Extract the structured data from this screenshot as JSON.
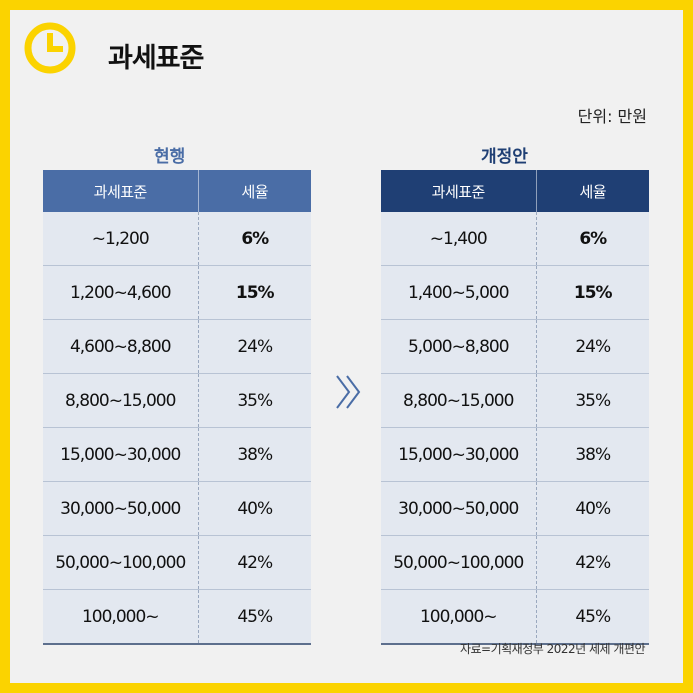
{
  "title": "과세표준",
  "unit_note": "단위: 만원",
  "current": {
    "caption": "현행",
    "header_color": "#4a6da6",
    "caption_color": "#4a6da6",
    "columns": [
      "과세표준",
      "세율"
    ],
    "rows": [
      {
        "bracket": "~1,200",
        "rate": "6%"
      },
      {
        "bracket": "1,200~4,600",
        "rate": "15%"
      },
      {
        "bracket": "4,600~8,800",
        "rate": "24%"
      },
      {
        "bracket": "8,800~15,000",
        "rate": "35%"
      },
      {
        "bracket": "15,000~30,000",
        "rate": "38%"
      },
      {
        "bracket": "30,000~50,000",
        "rate": "40%"
      },
      {
        "bracket": "50,000~100,000",
        "rate": "42%"
      },
      {
        "bracket": "100,000~",
        "rate": "45%"
      }
    ]
  },
  "revised": {
    "caption": "개정안",
    "header_color": "#1f3f74",
    "caption_color": "#1f3f74",
    "columns": [
      "과세표준",
      "세율"
    ],
    "rows": [
      {
        "bracket": "~1,400",
        "rate": "6%"
      },
      {
        "bracket": "1,400~5,000",
        "rate": "15%"
      },
      {
        "bracket": "5,000~8,800",
        "rate": "24%"
      },
      {
        "bracket": "8,800~15,000",
        "rate": "35%"
      },
      {
        "bracket": "15,000~30,000",
        "rate": "38%"
      },
      {
        "bracket": "30,000~50,000",
        "rate": "40%"
      },
      {
        "bracket": "50,000~100,000",
        "rate": "42%"
      },
      {
        "bracket": "100,000~",
        "rate": "45%"
      }
    ]
  },
  "arrow_icon": "double-chevron-right-icon",
  "source": "자료=기획재정부 2022년 세제 개편안",
  "colors": {
    "border": "#fbd300",
    "background": "#f1f1f1",
    "clock": "#fbd300"
  }
}
